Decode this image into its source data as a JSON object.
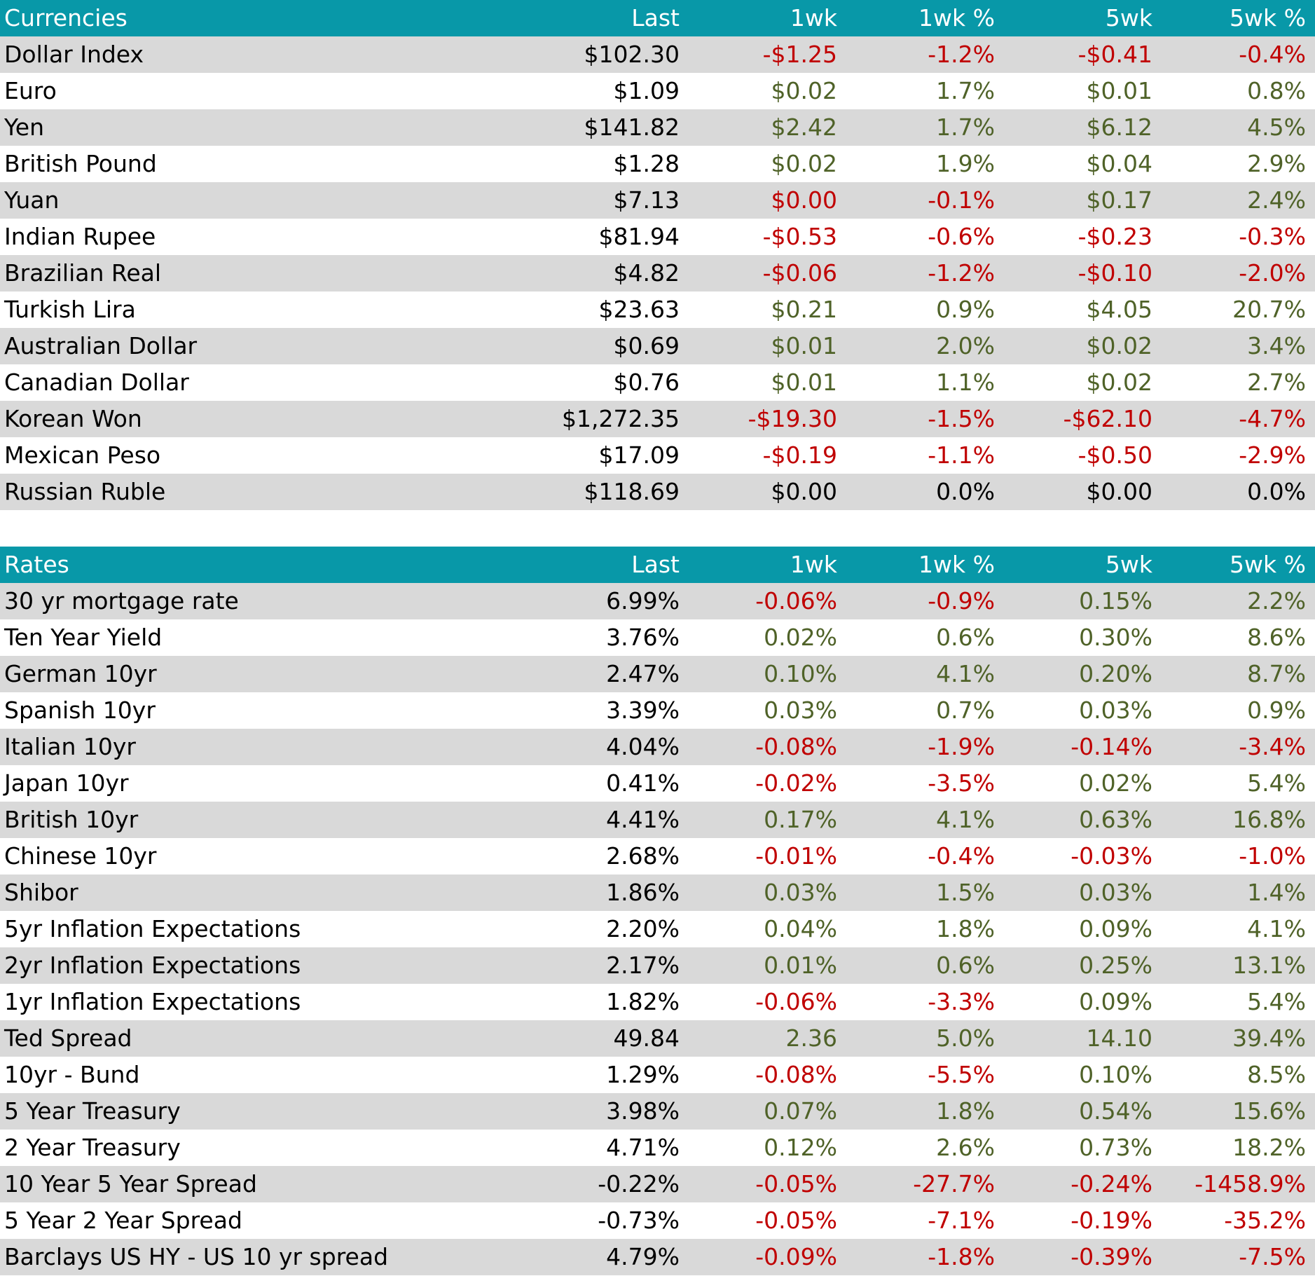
{
  "colors": {
    "header_bg": "#0898A8",
    "row_shade": "#D9D9D9",
    "positive": "#4F6228",
    "negative": "#C00000"
  },
  "currencies": {
    "header": {
      "title": "Currencies",
      "last": "Last",
      "wk1": "1wk",
      "wk1_pct": "1wk %",
      "wk5": "5wk",
      "wk5_pct": "5wk %"
    },
    "rows": [
      {
        "name": "Dollar Index",
        "last": "$102.30",
        "wk1": "-$1.25",
        "wk1_pct": "-1.2%",
        "wk5": "-$0.41",
        "wk5_pct": "-0.4%"
      },
      {
        "name": "Euro",
        "last": "$1.09",
        "wk1": "$0.02",
        "wk1_pct": "1.7%",
        "wk5": "$0.01",
        "wk5_pct": "0.8%"
      },
      {
        "name": "Yen",
        "last": "$141.82",
        "wk1": "$2.42",
        "wk1_pct": "1.7%",
        "wk5": "$6.12",
        "wk5_pct": "4.5%"
      },
      {
        "name": "British Pound",
        "last": "$1.28",
        "wk1": "$0.02",
        "wk1_pct": "1.9%",
        "wk5": "$0.04",
        "wk5_pct": "2.9%"
      },
      {
        "name": "Yuan",
        "last": "$7.13",
        "wk1": "$0.00",
        "wk1_pct": "-0.1%",
        "wk5": "$0.17",
        "wk5_pct": "2.4%"
      },
      {
        "name": "Indian Rupee",
        "last": "$81.94",
        "wk1": "-$0.53",
        "wk1_pct": "-0.6%",
        "wk5": "-$0.23",
        "wk5_pct": "-0.3%"
      },
      {
        "name": "Brazilian Real",
        "last": "$4.82",
        "wk1": "-$0.06",
        "wk1_pct": "-1.2%",
        "wk5": "-$0.10",
        "wk5_pct": "-2.0%"
      },
      {
        "name": "Turkish Lira",
        "last": "$23.63",
        "wk1": "$0.21",
        "wk1_pct": "0.9%",
        "wk5": "$4.05",
        "wk5_pct": "20.7%"
      },
      {
        "name": "Australian Dollar",
        "last": "$0.69",
        "wk1": "$0.01",
        "wk1_pct": "2.0%",
        "wk5": "$0.02",
        "wk5_pct": "3.4%"
      },
      {
        "name": "Canadian Dollar",
        "last": "$0.76",
        "wk1": "$0.01",
        "wk1_pct": "1.1%",
        "wk5": "$0.02",
        "wk5_pct": "2.7%"
      },
      {
        "name": "Korean Won",
        "last": "$1,272.35",
        "wk1": "-$19.30",
        "wk1_pct": "-1.5%",
        "wk5": "-$62.10",
        "wk5_pct": "-4.7%"
      },
      {
        "name": "Mexican Peso",
        "last": "$17.09",
        "wk1": "-$0.19",
        "wk1_pct": "-1.1%",
        "wk5": "-$0.50",
        "wk5_pct": "-2.9%"
      },
      {
        "name": "Russian Ruble",
        "last": "$118.69",
        "wk1": "$0.00",
        "wk1_pct": "0.0%",
        "wk5": "$0.00",
        "wk5_pct": "0.0%"
      }
    ],
    "tones": [
      [
        "neg",
        "neg",
        "neg",
        "neg"
      ],
      [
        "pos",
        "pos",
        "pos",
        "pos"
      ],
      [
        "pos",
        "pos",
        "pos",
        "pos"
      ],
      [
        "pos",
        "pos",
        "pos",
        "pos"
      ],
      [
        "neg",
        "neg",
        "pos",
        "pos"
      ],
      [
        "neg",
        "neg",
        "neg",
        "neg"
      ],
      [
        "neg",
        "neg",
        "neg",
        "neg"
      ],
      [
        "pos",
        "pos",
        "pos",
        "pos"
      ],
      [
        "pos",
        "pos",
        "pos",
        "pos"
      ],
      [
        "pos",
        "pos",
        "pos",
        "pos"
      ],
      [
        "neg",
        "neg",
        "neg",
        "neg"
      ],
      [
        "neg",
        "neg",
        "neg",
        "neg"
      ],
      [
        "neu",
        "neu",
        "neu",
        "neu"
      ]
    ]
  },
  "rates": {
    "header": {
      "title": "Rates",
      "last": "Last",
      "wk1": "1wk",
      "wk1_pct": "1wk %",
      "wk5": "5wk",
      "wk5_pct": "5wk %"
    },
    "rows": [
      {
        "name": "30 yr mortgage rate",
        "last": "6.99%",
        "wk1": "-0.06%",
        "wk1_pct": "-0.9%",
        "wk5": "0.15%",
        "wk5_pct": "2.2%"
      },
      {
        "name": "Ten Year Yield",
        "last": "3.76%",
        "wk1": "0.02%",
        "wk1_pct": "0.6%",
        "wk5": "0.30%",
        "wk5_pct": "8.6%"
      },
      {
        "name": "German 10yr",
        "last": "2.47%",
        "wk1": "0.10%",
        "wk1_pct": "4.1%",
        "wk5": "0.20%",
        "wk5_pct": "8.7%"
      },
      {
        "name": "Spanish 10yr",
        "last": "3.39%",
        "wk1": "0.03%",
        "wk1_pct": "0.7%",
        "wk5": "0.03%",
        "wk5_pct": "0.9%"
      },
      {
        "name": "Italian 10yr",
        "last": "4.04%",
        "wk1": "-0.08%",
        "wk1_pct": "-1.9%",
        "wk5": "-0.14%",
        "wk5_pct": "-3.4%"
      },
      {
        "name": "Japan 10yr",
        "last": "0.41%",
        "wk1": "-0.02%",
        "wk1_pct": "-3.5%",
        "wk5": "0.02%",
        "wk5_pct": "5.4%"
      },
      {
        "name": "British 10yr",
        "last": "4.41%",
        "wk1": "0.17%",
        "wk1_pct": "4.1%",
        "wk5": "0.63%",
        "wk5_pct": "16.8%"
      },
      {
        "name": "Chinese 10yr",
        "last": "2.68%",
        "wk1": "-0.01%",
        "wk1_pct": "-0.4%",
        "wk5": "-0.03%",
        "wk5_pct": "-1.0%"
      },
      {
        "name": "Shibor",
        "last": "1.86%",
        "wk1": "0.03%",
        "wk1_pct": "1.5%",
        "wk5": "0.03%",
        "wk5_pct": "1.4%"
      },
      {
        "name": "5yr Inflation Expectations",
        "last": "2.20%",
        "wk1": "0.04%",
        "wk1_pct": "1.8%",
        "wk5": "0.09%",
        "wk5_pct": "4.1%"
      },
      {
        "name": "2yr Inflation Expectations",
        "last": "2.17%",
        "wk1": "0.01%",
        "wk1_pct": "0.6%",
        "wk5": "0.25%",
        "wk5_pct": "13.1%"
      },
      {
        "name": "1yr Inflation Expectations",
        "last": "1.82%",
        "wk1": "-0.06%",
        "wk1_pct": "-3.3%",
        "wk5": "0.09%",
        "wk5_pct": "5.4%"
      },
      {
        "name": "Ted Spread",
        "last": "49.84",
        "wk1": "2.36",
        "wk1_pct": "5.0%",
        "wk5": "14.10",
        "wk5_pct": "39.4%"
      },
      {
        "name": "10yr - Bund",
        "last": "1.29%",
        "wk1": "-0.08%",
        "wk1_pct": "-5.5%",
        "wk5": "0.10%",
        "wk5_pct": "8.5%"
      },
      {
        "name": "5 Year Treasury",
        "last": "3.98%",
        "wk1": "0.07%",
        "wk1_pct": "1.8%",
        "wk5": "0.54%",
        "wk5_pct": "15.6%"
      },
      {
        "name": "2 Year Treasury",
        "last": "4.71%",
        "wk1": "0.12%",
        "wk1_pct": "2.6%",
        "wk5": "0.73%",
        "wk5_pct": "18.2%"
      },
      {
        "name": "10 Year 5 Year Spread",
        "last": "-0.22%",
        "wk1": "-0.05%",
        "wk1_pct": "-27.7%",
        "wk5": "-0.24%",
        "wk5_pct": "-1458.9%"
      },
      {
        "name": "5 Year 2 Year Spread",
        "last": "-0.73%",
        "wk1": "-0.05%",
        "wk1_pct": "-7.1%",
        "wk5": "-0.19%",
        "wk5_pct": "-35.2%"
      },
      {
        "name": "Barclays US HY - US 10 yr spread",
        "last": "4.79%",
        "wk1": "-0.09%",
        "wk1_pct": "-1.8%",
        "wk5": "-0.39%",
        "wk5_pct": "-7.5%"
      }
    ],
    "tones": [
      [
        "neg",
        "neg",
        "pos",
        "pos"
      ],
      [
        "pos",
        "pos",
        "pos",
        "pos"
      ],
      [
        "pos",
        "pos",
        "pos",
        "pos"
      ],
      [
        "pos",
        "pos",
        "pos",
        "pos"
      ],
      [
        "neg",
        "neg",
        "neg",
        "neg"
      ],
      [
        "neg",
        "neg",
        "pos",
        "pos"
      ],
      [
        "pos",
        "pos",
        "pos",
        "pos"
      ],
      [
        "neg",
        "neg",
        "neg",
        "neg"
      ],
      [
        "pos",
        "pos",
        "pos",
        "pos"
      ],
      [
        "pos",
        "pos",
        "pos",
        "pos"
      ],
      [
        "pos",
        "pos",
        "pos",
        "pos"
      ],
      [
        "neg",
        "neg",
        "pos",
        "pos"
      ],
      [
        "pos",
        "pos",
        "pos",
        "pos"
      ],
      [
        "neg",
        "neg",
        "pos",
        "pos"
      ],
      [
        "pos",
        "pos",
        "pos",
        "pos"
      ],
      [
        "pos",
        "pos",
        "pos",
        "pos"
      ],
      [
        "neg",
        "neg",
        "neg",
        "neg"
      ],
      [
        "neg",
        "neg",
        "neg",
        "neg"
      ],
      [
        "neg",
        "neg",
        "neg",
        "neg"
      ]
    ]
  }
}
